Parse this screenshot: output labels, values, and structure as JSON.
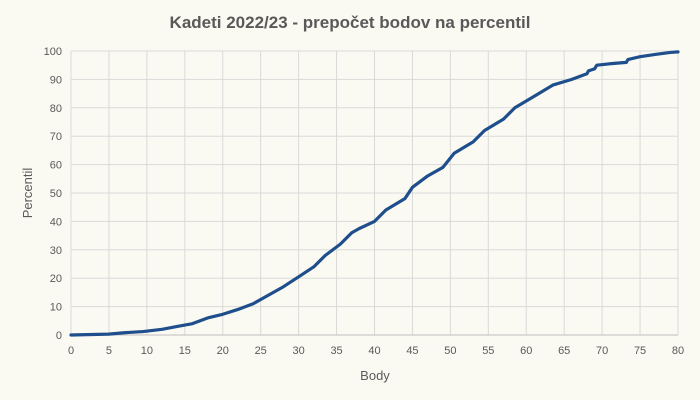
{
  "chart_data": {
    "type": "line",
    "title": "Kadeti 2022/23 - prepočet bodov na percentil",
    "xlabel": "Body",
    "ylabel": "Percentil",
    "xlim": [
      0,
      80
    ],
    "ylim": [
      0,
      100
    ],
    "xticks": [
      0,
      5,
      10,
      15,
      20,
      25,
      30,
      35,
      40,
      45,
      50,
      55,
      60,
      65,
      70,
      75,
      80
    ],
    "yticks": [
      0,
      10,
      20,
      30,
      40,
      50,
      60,
      70,
      80,
      90,
      100
    ],
    "grid": true,
    "legend": "none",
    "line_color": "#1f4e8c",
    "series": [
      {
        "values": [
          [
            0,
            0
          ],
          [
            5,
            0.3
          ],
          [
            7,
            0.8
          ],
          [
            9.5,
            1.2
          ],
          [
            12,
            2
          ],
          [
            14,
            3
          ],
          [
            16,
            4
          ],
          [
            18,
            6
          ],
          [
            20,
            7.3
          ],
          [
            22,
            9
          ],
          [
            24,
            11
          ],
          [
            26,
            14
          ],
          [
            28,
            17
          ],
          [
            30,
            20.5
          ],
          [
            32,
            24
          ],
          [
            33.5,
            28
          ],
          [
            35.5,
            32
          ],
          [
            37,
            36
          ],
          [
            38,
            37.5
          ],
          [
            40,
            40
          ],
          [
            41.5,
            44
          ],
          [
            44,
            48
          ],
          [
            45,
            52
          ],
          [
            47,
            56
          ],
          [
            49,
            59
          ],
          [
            50.5,
            64
          ],
          [
            53,
            68
          ],
          [
            54.5,
            72
          ],
          [
            57,
            76
          ],
          [
            58.5,
            80
          ],
          [
            61,
            84
          ],
          [
            63.5,
            88
          ],
          [
            66,
            90
          ],
          [
            68,
            92
          ],
          [
            68.2,
            93
          ],
          [
            69,
            93.7
          ],
          [
            69.3,
            95
          ],
          [
            71,
            95.5
          ],
          [
            73.2,
            96
          ],
          [
            73.4,
            97
          ],
          [
            75,
            98
          ],
          [
            77,
            98.8
          ],
          [
            79,
            99.5
          ],
          [
            80,
            99.7
          ]
        ]
      }
    ]
  }
}
